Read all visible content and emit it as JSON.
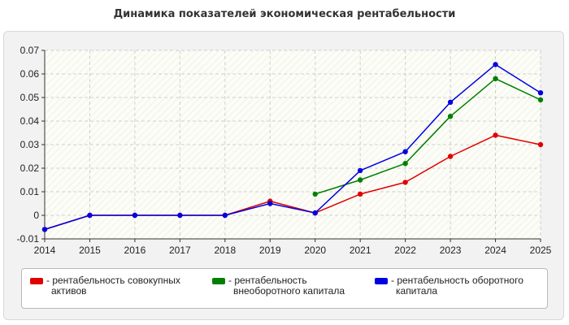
{
  "chart_data": {
    "type": "line",
    "title": "Динамика показателей экономическая рентабельности",
    "x": [
      "2014",
      "2015",
      "2016",
      "2017",
      "2018",
      "2019",
      "2020",
      "2021",
      "2022",
      "2023",
      "2024",
      "2025"
    ],
    "ylim": [
      -0.01,
      0.07
    ],
    "yticks": [
      -0.01,
      0,
      0.01,
      0.02,
      0.03,
      0.04,
      0.05,
      0.06,
      0.07
    ],
    "ytick_labels": [
      "-0.01",
      "0",
      "0.01",
      "0.02",
      "0.03",
      "0.04",
      "0.05",
      "0.06",
      "0.07"
    ],
    "grid": true,
    "legend_position": "bottom",
    "series": [
      {
        "name_lines": [
          "- рентабельность совокупных",
          "активов"
        ],
        "color": "#e00000",
        "values": [
          -0.006,
          0,
          0,
          0,
          0,
          0.006,
          0.001,
          0.009,
          0.014,
          0.025,
          0.034,
          0.03
        ]
      },
      {
        "name_lines": [
          "- рентабельность",
          "внеоборотного капитала"
        ],
        "color": "#008000",
        "values": [
          null,
          null,
          null,
          null,
          null,
          null,
          0.009,
          0.015,
          0.022,
          0.042,
          0.058,
          0.049
        ]
      },
      {
        "name_lines": [
          "- рентабельность оборотного",
          "капитала"
        ],
        "color": "#0000e0",
        "values": [
          -0.006,
          0,
          0,
          0,
          0,
          0.005,
          0.001,
          0.019,
          0.027,
          0.048,
          0.064,
          0.052
        ]
      }
    ]
  }
}
